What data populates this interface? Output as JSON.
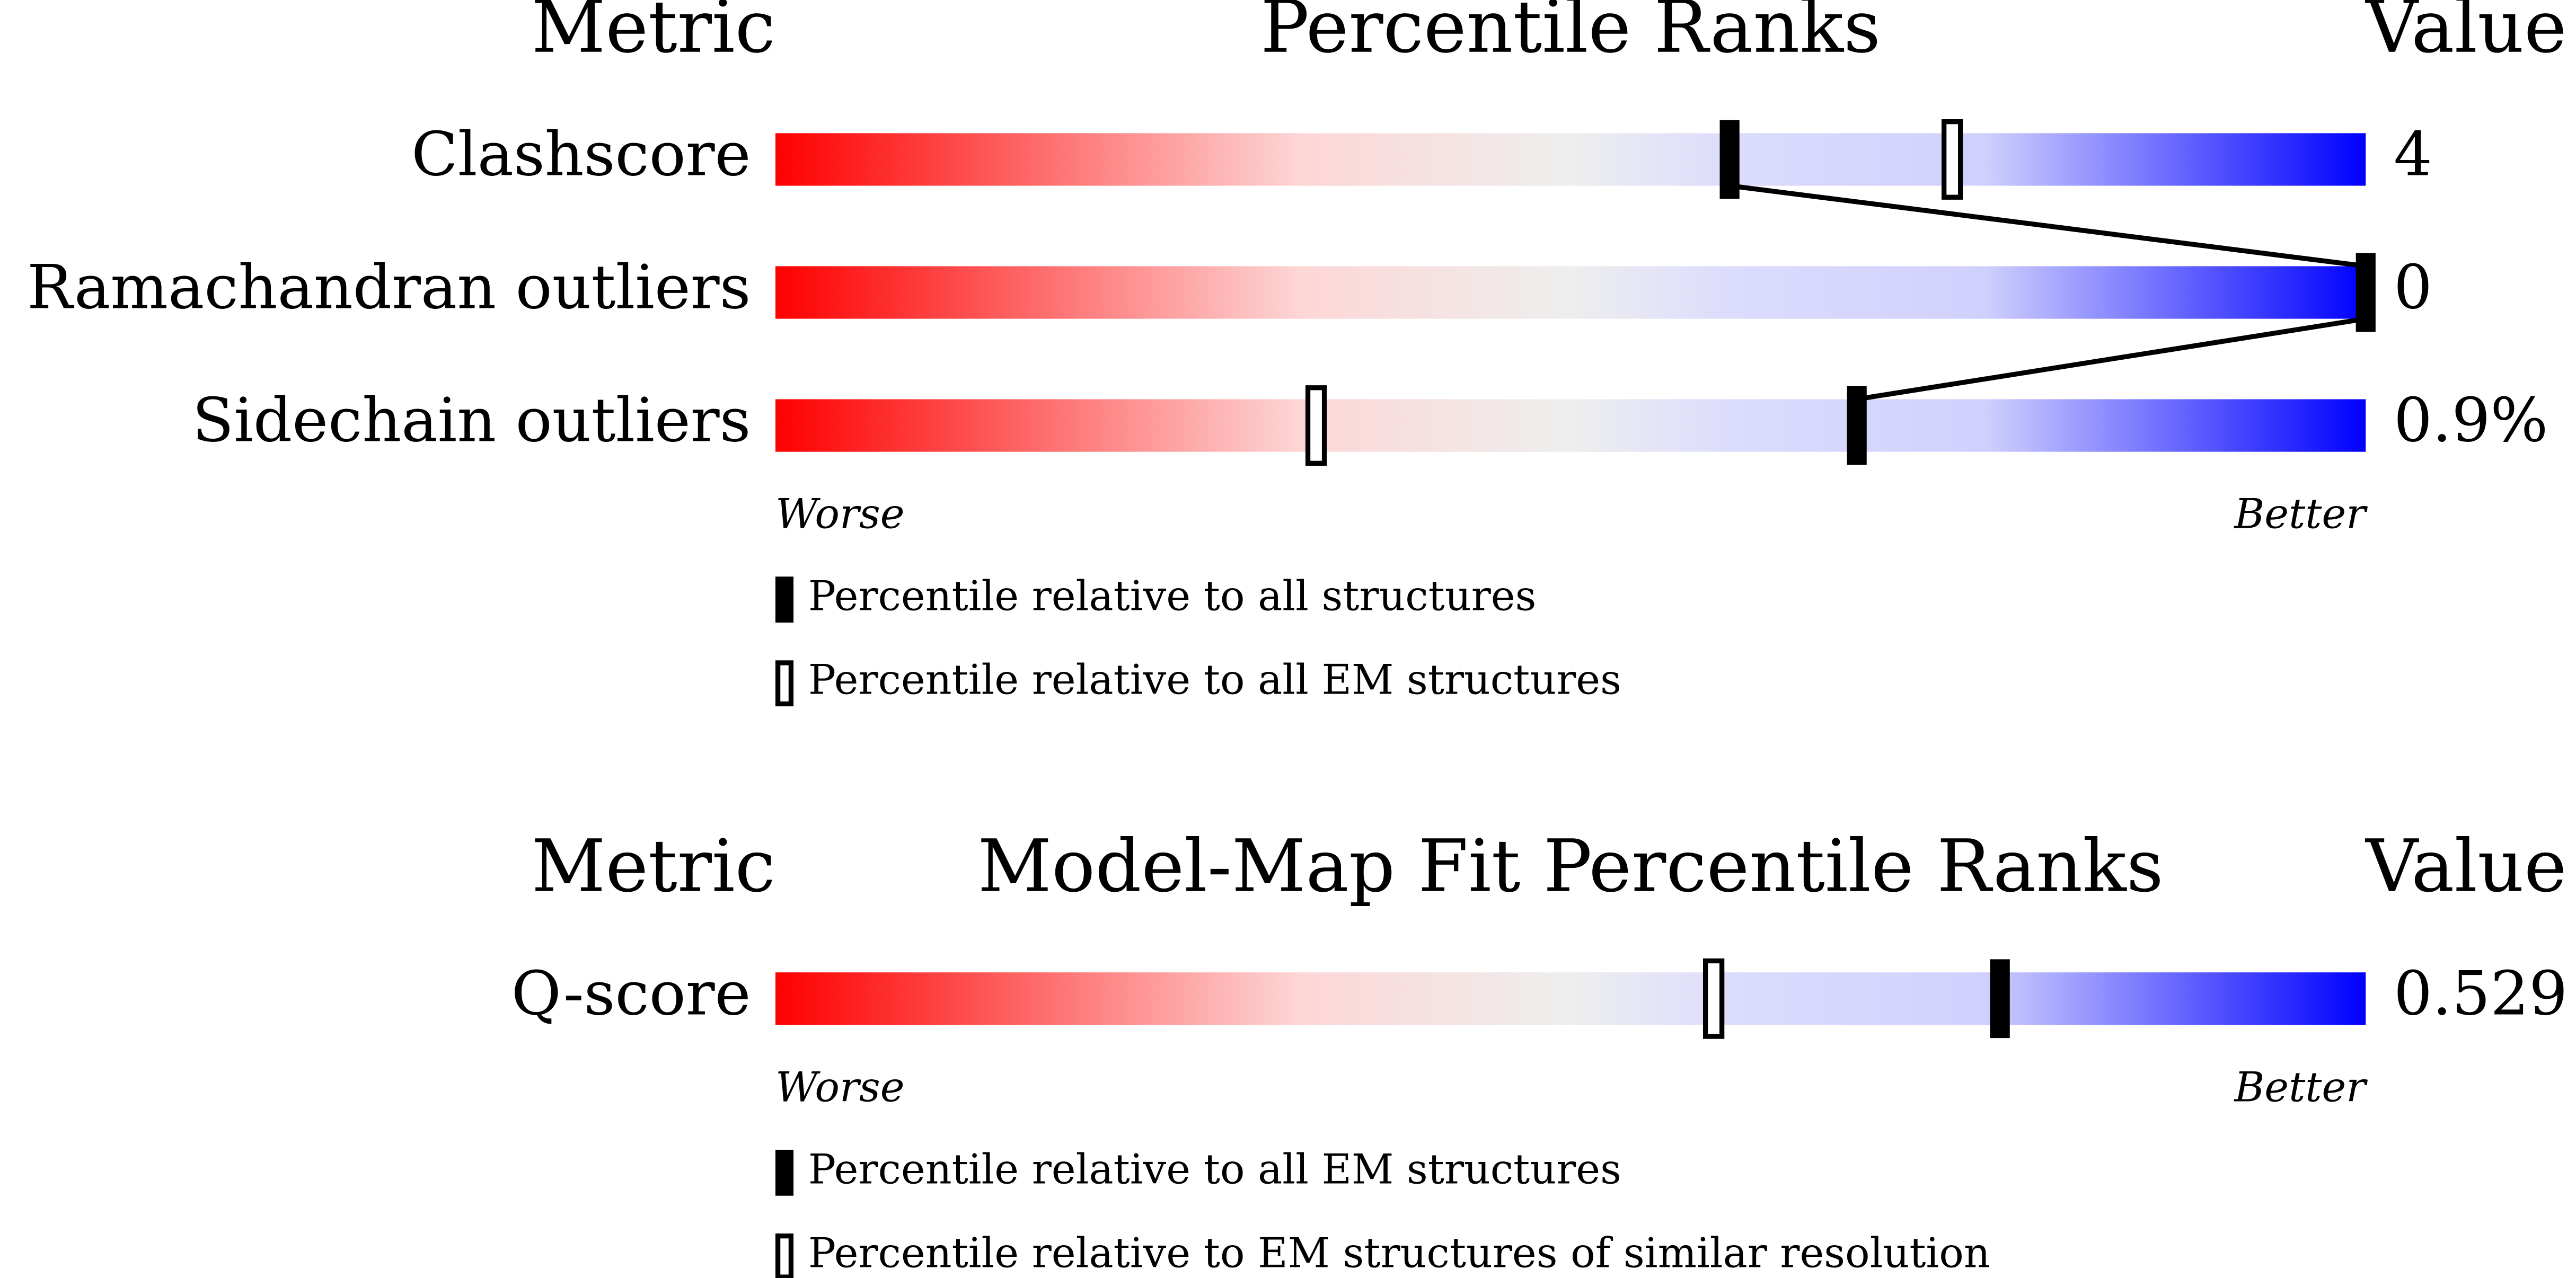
{
  "chart_data": [
    {
      "type": "percentile-slider",
      "headers": {
        "metric": "Metric",
        "title": "Percentile Ranks",
        "value": "Value"
      },
      "categories": [
        "Clashscore",
        "Ramachandran outliers",
        "Sidechain outliers"
      ],
      "metric_values": [
        "4",
        "0",
        "0.9%"
      ],
      "xlim": [
        0,
        100
      ],
      "axis_labels": {
        "low": "Worse",
        "high": "Better"
      },
      "connect": true,
      "series": [
        {
          "name": "Percentile relative to all structures",
          "style": "filled",
          "color": "#000000",
          "values": [
            60,
            100,
            68
          ]
        },
        {
          "name": "Percentile relative to all EM structures",
          "style": "hollow",
          "color": "#000000",
          "values": [
            74,
            null,
            34
          ]
        }
      ]
    },
    {
      "type": "percentile-slider",
      "headers": {
        "metric": "Metric",
        "title": "Model-Map Fit Percentile Ranks",
        "value": "Value"
      },
      "categories": [
        "Q-score"
      ],
      "metric_values": [
        "0.529"
      ],
      "xlim": [
        0,
        100
      ],
      "axis_labels": {
        "low": "Worse",
        "high": "Better"
      },
      "connect": false,
      "series": [
        {
          "name": "Percentile relative to all EM structures",
          "style": "filled",
          "color": "#000000",
          "values": [
            77
          ]
        },
        {
          "name": "Percentile relative to EM structures of similar resolution",
          "style": "hollow",
          "color": "#000000",
          "values": [
            59
          ]
        }
      ]
    }
  ]
}
